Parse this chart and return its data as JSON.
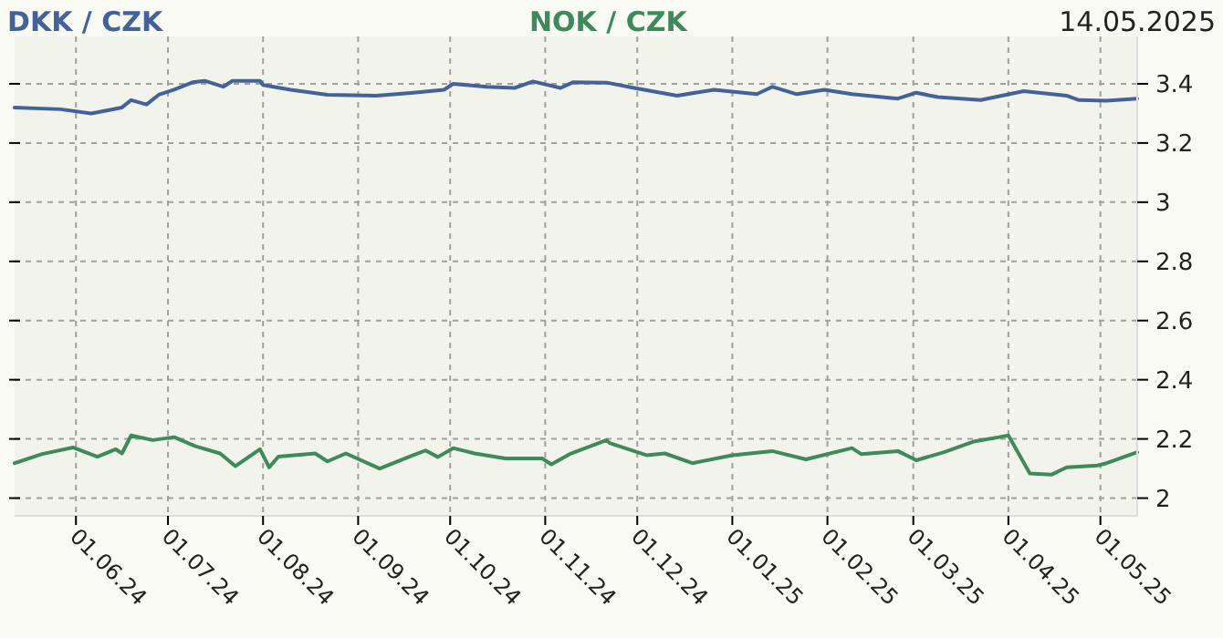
{
  "chart_data": {
    "type": "line",
    "annotations": [
      "14.05.2025"
    ],
    "legend": "top",
    "grid": true,
    "xlim": [
      "2024-05-12",
      "2025-05-13"
    ],
    "ylim": [
      1.94,
      3.56
    ],
    "yticks": [
      {
        "value": 2,
        "label": "2"
      },
      {
        "value": 2.2,
        "label": "2.2"
      },
      {
        "value": 2.4,
        "label": "2.4"
      },
      {
        "value": 2.6,
        "label": "2.6"
      },
      {
        "value": 2.8,
        "label": "2.8"
      },
      {
        "value": 3,
        "label": "3"
      },
      {
        "value": 3.2,
        "label": "3.2"
      },
      {
        "value": 3.4,
        "label": "3.4"
      }
    ],
    "xticks": [
      {
        "value": "2024-06-01",
        "label": "01.06.24"
      },
      {
        "value": "2024-07-01",
        "label": "01.07.24"
      },
      {
        "value": "2024-08-01",
        "label": "01.08.24"
      },
      {
        "value": "2024-09-01",
        "label": "01.09.24"
      },
      {
        "value": "2024-10-01",
        "label": "01.10.24"
      },
      {
        "value": "2024-11-01",
        "label": "01.11.24"
      },
      {
        "value": "2024-12-01",
        "label": "01.12.24"
      },
      {
        "value": "2025-01-01",
        "label": "01.01.25"
      },
      {
        "value": "2025-02-01",
        "label": "01.02.25"
      },
      {
        "value": "2025-03-01",
        "label": "01.03.25"
      },
      {
        "value": "2025-04-01",
        "label": "01.04.25"
      },
      {
        "value": "2025-05-01",
        "label": "01.05.25"
      }
    ],
    "series": [
      {
        "name": "DKK / CZK",
        "color": "#45619a",
        "x": [
          "2024-05-12",
          "2024-05-27",
          "2024-06-06",
          "2024-06-16",
          "2024-06-19",
          "2024-06-24",
          "2024-06-28",
          "2024-07-03",
          "2024-07-09",
          "2024-07-13",
          "2024-07-19",
          "2024-07-22",
          "2024-07-31",
          "2024-08-01",
          "2024-08-10",
          "2024-08-22",
          "2024-09-07",
          "2024-09-19",
          "2024-09-29",
          "2024-10-02",
          "2024-10-13",
          "2024-10-22",
          "2024-10-28",
          "2024-11-06",
          "2024-11-10",
          "2024-11-21",
          "2024-11-30",
          "2024-12-14",
          "2024-12-26",
          "2025-01-09",
          "2025-01-14",
          "2025-01-22",
          "2025-01-31",
          "2025-02-09",
          "2025-02-24",
          "2025-03-02",
          "2025-03-09",
          "2025-03-23",
          "2025-04-06",
          "2025-04-20",
          "2025-04-24",
          "2025-05-03",
          "2025-05-13"
        ],
        "values": [
          3.32,
          3.314,
          3.3,
          3.32,
          3.345,
          3.33,
          3.363,
          3.38,
          3.405,
          3.41,
          3.39,
          3.41,
          3.41,
          3.396,
          3.38,
          3.363,
          3.36,
          3.37,
          3.38,
          3.4,
          3.39,
          3.386,
          3.408,
          3.386,
          3.405,
          3.404,
          3.386,
          3.36,
          3.38,
          3.365,
          3.39,
          3.365,
          3.38,
          3.365,
          3.35,
          3.37,
          3.355,
          3.345,
          3.375,
          3.36,
          3.345,
          3.343,
          3.35
        ]
      },
      {
        "name": "NOK / CZK",
        "color": "#3e8a5a",
        "x": [
          "2024-05-12",
          "2024-05-21",
          "2024-05-31",
          "2024-06-08",
          "2024-06-14",
          "2024-06-16",
          "2024-06-19",
          "2024-06-26",
          "2024-07-03",
          "2024-07-10",
          "2024-07-18",
          "2024-07-23",
          "2024-07-31",
          "2024-08-03",
          "2024-08-06",
          "2024-08-18",
          "2024-08-22",
          "2024-08-28",
          "2024-09-08",
          "2024-09-19",
          "2024-09-23",
          "2024-09-27",
          "2024-10-02",
          "2024-10-09",
          "2024-10-19",
          "2024-10-31",
          "2024-11-03",
          "2024-11-09",
          "2024-11-21",
          "2024-11-22",
          "2024-12-04",
          "2024-12-10",
          "2024-12-19",
          "2025-01-01",
          "2025-01-14",
          "2025-01-25",
          "2025-02-09",
          "2025-02-12",
          "2025-02-24",
          "2025-03-02",
          "2025-03-11",
          "2025-03-21",
          "2025-03-29",
          "2025-04-01",
          "2025-04-08",
          "2025-04-15",
          "2025-04-20",
          "2025-04-30",
          "2025-05-03",
          "2025-05-13"
        ],
        "values": [
          2.118,
          2.149,
          2.171,
          2.14,
          2.165,
          2.151,
          2.212,
          2.196,
          2.206,
          2.175,
          2.151,
          2.108,
          2.165,
          2.104,
          2.14,
          2.151,
          2.124,
          2.151,
          2.1,
          2.145,
          2.161,
          2.139,
          2.169,
          2.151,
          2.134,
          2.134,
          2.114,
          2.149,
          2.196,
          2.186,
          2.145,
          2.151,
          2.118,
          2.145,
          2.159,
          2.131,
          2.169,
          2.149,
          2.159,
          2.128,
          2.155,
          2.192,
          2.206,
          2.212,
          2.083,
          2.079,
          2.104,
          2.11,
          2.118,
          2.155
        ]
      }
    ]
  }
}
